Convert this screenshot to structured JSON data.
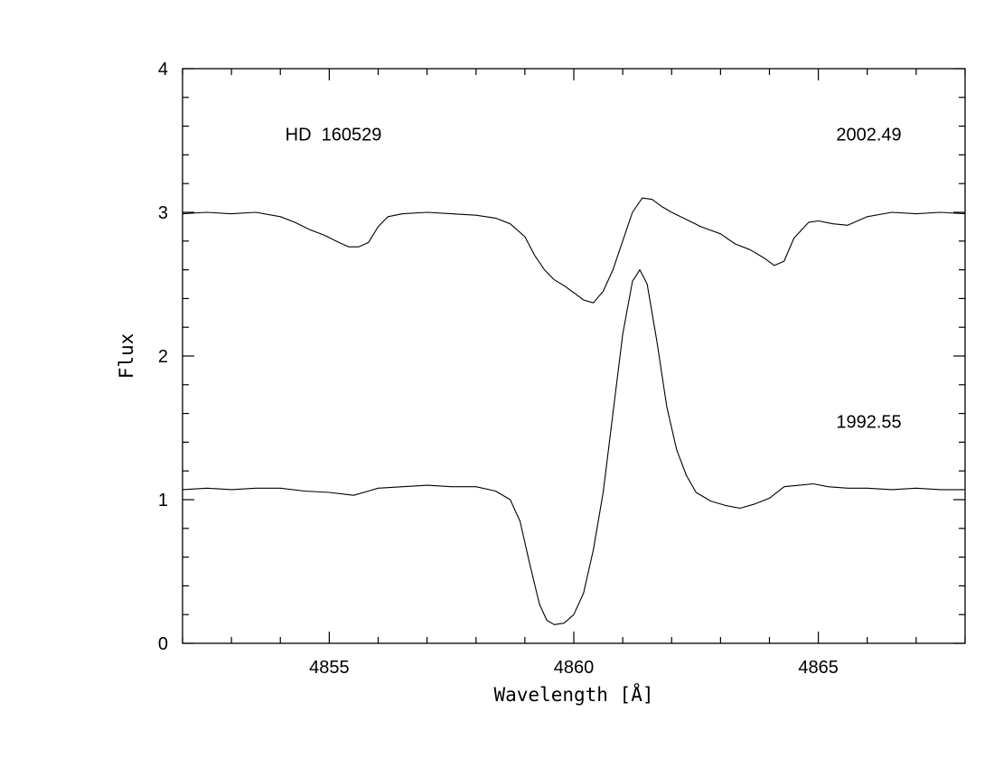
{
  "chart_data": {
    "type": "line",
    "title": "",
    "xlabel": "Wavelength [Å]",
    "ylabel": "Flux",
    "xlim": [
      4852,
      4868
    ],
    "ylim": [
      0,
      4
    ],
    "x_ticks_major": [
      4855,
      4860,
      4865
    ],
    "x_tick_labels": [
      "4855",
      "4860",
      "4865"
    ],
    "y_ticks_major": [
      0,
      1,
      2,
      3,
      4
    ],
    "y_tick_labels": [
      "0",
      "1",
      "2",
      "3",
      "4"
    ],
    "x_minor_step": 1,
    "y_minor_step": 0.2,
    "grid": false,
    "annotations": [
      {
        "text": "HD 160529",
        "x": 4854.1,
        "y": 3.5
      },
      {
        "text": "2002.49",
        "x": 4866.7,
        "y": 3.5
      },
      {
        "text": "1992.55",
        "x": 4866.7,
        "y": 1.5
      }
    ],
    "series": [
      {
        "x": [
          4852.0,
          4852.5,
          4853.0,
          4853.5,
          4854.0,
          4854.3,
          4854.6,
          4854.9,
          4855.2,
          4855.4,
          4855.6,
          4855.8,
          4856.0,
          4856.2,
          4856.5,
          4857.0,
          4857.5,
          4858.0,
          4858.4,
          4858.7,
          4859.0,
          4859.2,
          4859.4,
          4859.6,
          4859.8,
          4860.0,
          4860.2,
          4860.4,
          4860.6,
          4860.8,
          4861.0,
          4861.2,
          4861.4,
          4861.6,
          4861.8,
          4862.0,
          4862.3,
          4862.6,
          4863.0,
          4863.3,
          4863.6,
          4863.9,
          4864.1,
          4864.3,
          4864.5,
          4864.8,
          4865.0,
          4865.3,
          4865.6,
          4866.0,
          4866.5,
          4867.0,
          4867.5,
          4868.0
        ],
        "y": [
          2.99,
          3.0,
          2.99,
          3.0,
          2.97,
          2.93,
          2.88,
          2.84,
          2.79,
          2.76,
          2.76,
          2.79,
          2.9,
          2.97,
          2.99,
          3.0,
          2.99,
          2.98,
          2.96,
          2.92,
          2.83,
          2.7,
          2.6,
          2.53,
          2.49,
          2.44,
          2.39,
          2.37,
          2.45,
          2.6,
          2.8,
          3.0,
          3.1,
          3.09,
          3.04,
          3.0,
          2.95,
          2.9,
          2.85,
          2.78,
          2.74,
          2.68,
          2.63,
          2.66,
          2.82,
          2.93,
          2.94,
          2.92,
          2.91,
          2.97,
          3.0,
          2.99,
          3.0,
          2.99
        ]
      },
      {
        "x": [
          4852.0,
          4852.5,
          4853.0,
          4853.5,
          4854.0,
          4854.5,
          4855.0,
          4855.5,
          4855.8,
          4856.0,
          4856.5,
          4857.0,
          4857.5,
          4858.0,
          4858.4,
          4858.7,
          4858.9,
          4859.1,
          4859.3,
          4859.45,
          4859.6,
          4859.8,
          4860.0,
          4860.2,
          4860.4,
          4860.6,
          4860.8,
          4861.0,
          4861.2,
          4861.35,
          4861.5,
          4861.7,
          4861.9,
          4862.1,
          4862.3,
          4862.5,
          4862.8,
          4863.1,
          4863.4,
          4863.7,
          4864.0,
          4864.3,
          4864.6,
          4864.9,
          4865.2,
          4865.6,
          4866.0,
          4866.5,
          4867.0,
          4867.5,
          4868.0
        ],
        "y": [
          1.07,
          1.08,
          1.07,
          1.08,
          1.08,
          1.06,
          1.05,
          1.03,
          1.06,
          1.08,
          1.09,
          1.1,
          1.09,
          1.09,
          1.06,
          1.0,
          0.85,
          0.55,
          0.27,
          0.16,
          0.13,
          0.14,
          0.2,
          0.35,
          0.65,
          1.05,
          1.6,
          2.15,
          2.52,
          2.6,
          2.5,
          2.1,
          1.65,
          1.35,
          1.17,
          1.05,
          0.99,
          0.96,
          0.94,
          0.97,
          1.01,
          1.09,
          1.1,
          1.11,
          1.09,
          1.08,
          1.08,
          1.07,
          1.08,
          1.07,
          1.07
        ]
      }
    ]
  }
}
